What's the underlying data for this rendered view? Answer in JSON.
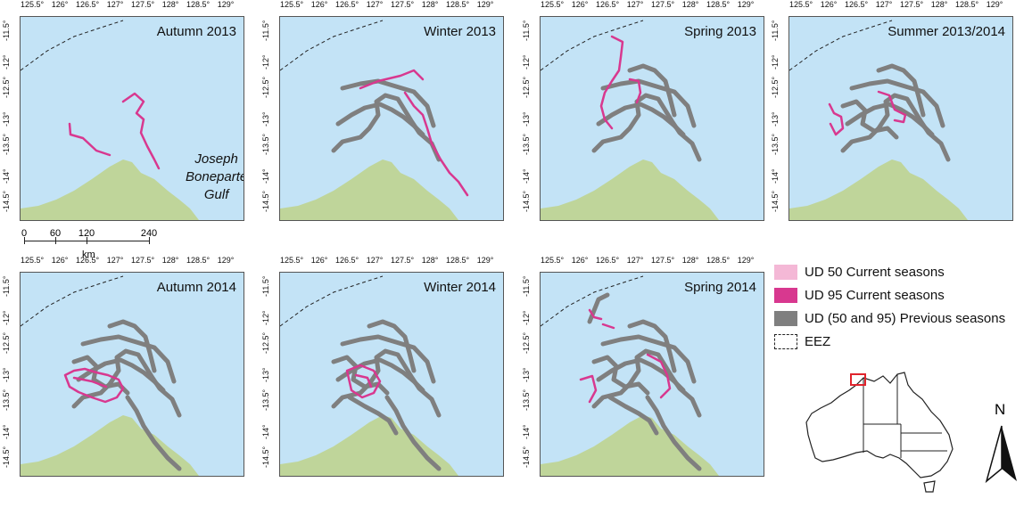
{
  "x_ticks": [
    "125.5°",
    "126°",
    "126.5°",
    "127°",
    "127.5°",
    "128°",
    "128.5°",
    "129°"
  ],
  "y_ticks": [
    "-11.5°",
    "-12°",
    "-12.5°",
    "-13°",
    "-13.5°",
    "-14°",
    "-14.5°"
  ],
  "panels": [
    {
      "title": "Autumn 2013"
    },
    {
      "title": "Winter 2013"
    },
    {
      "title": "Spring 2013"
    },
    {
      "title": "Summer 2013/2014"
    },
    {
      "title": "Autumn 2014"
    },
    {
      "title": "Winter 2014"
    },
    {
      "title": "Spring 2014"
    }
  ],
  "gulf_label": [
    "Joseph",
    "Boneparte",
    "Gulf"
  ],
  "scale": {
    "labels": [
      "0",
      "60",
      "120",
      "240"
    ],
    "unit": "km"
  },
  "legend": [
    {
      "label": "UD 50 Current seasons",
      "color": "#f4b8d6"
    },
    {
      "label": "UD 95 Current seasons",
      "color": "#d8388f"
    },
    {
      "label": "UD (50 and 95) Previous seasons",
      "color": "#7f7f7f"
    },
    {
      "label": "EEZ",
      "color": "#ffffff"
    }
  ],
  "north_label": "N",
  "colors": {
    "sea": "#c3e3f6",
    "land": "#bfd59a",
    "current": "#d8388f",
    "previous": "#7f7f7f"
  }
}
